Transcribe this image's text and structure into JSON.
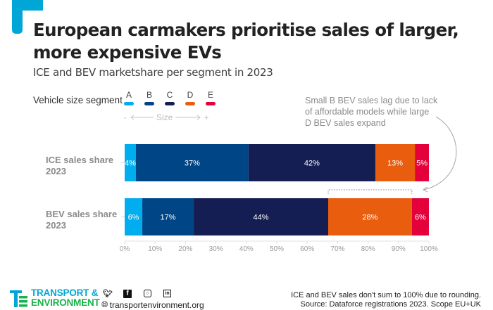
{
  "header": {
    "title_line1": "European carmakers prioritise sales of larger,",
    "title_line2": "more expensive EVs",
    "subtitle": "ICE and BEV marketshare per segment in 2023"
  },
  "legend": {
    "label": "Vehicle size segment",
    "size_minus": "-",
    "size_label": "Size",
    "size_plus": "+"
  },
  "annotation": {
    "lines": [
      "Small B BEV sales lag due to lack",
      "of affordable models while large",
      "D BEV sales expand"
    ]
  },
  "chart_data": {
    "type": "bar",
    "orientation": "horizontal",
    "stacked": true,
    "title": "European carmakers prioritise sales of larger, more expensive EVs",
    "subtitle": "ICE and BEV marketshare per segment in 2023",
    "categories": [
      "ICE sales share 2023",
      "BEV sales share 2023"
    ],
    "category_lines": [
      [
        "ICE sales share",
        "2023"
      ],
      [
        "BEV sales share",
        "2023"
      ]
    ],
    "series": [
      {
        "name": "A",
        "color": "#00aeef",
        "values": [
          4,
          6
        ],
        "labels": [
          "4%",
          "6%"
        ]
      },
      {
        "name": "B",
        "color": "#004586",
        "values": [
          37,
          17
        ],
        "labels": [
          "37%",
          "17%"
        ]
      },
      {
        "name": "C",
        "color": "#151e52",
        "values": [
          42,
          44
        ],
        "labels": [
          "42%",
          "44%"
        ]
      },
      {
        "name": "D",
        "color": "#e85d0e",
        "values": [
          13,
          28
        ],
        "labels": [
          "13%",
          "28%"
        ]
      },
      {
        "name": "E",
        "color": "#e4003b",
        "values": [
          5,
          6
        ],
        "labels": [
          "5%",
          "6%"
        ]
      }
    ],
    "segment_bounds_pct": [
      [
        0,
        3.7,
        40.7,
        82.4,
        95.4,
        100
      ],
      [
        0,
        5.8,
        22.7,
        66.9,
        94.4,
        100
      ]
    ],
    "xlabel": "",
    "ylabel": "",
    "xlim": [
      0,
      100
    ],
    "xticks": [
      0,
      10,
      20,
      30,
      40,
      50,
      60,
      70,
      80,
      90,
      100
    ],
    "xtick_labels": [
      "0%",
      "10%",
      "20%",
      "30%",
      "40%",
      "50%",
      "60%",
      "70%",
      "80%",
      "90%",
      "100%"
    ],
    "grid": false,
    "legend_position": "top-left",
    "annotation_text": "Small B BEV sales lag due to lack of affordable models while large D BEV sales expand",
    "bracket_range_pct": [
      66.9,
      94.4
    ]
  },
  "footer": {
    "logo_line1": "TRANSPORT &",
    "logo_line2": "ENVIRONMENT",
    "social_icons": [
      "twitter-icon",
      "facebook-icon",
      "instagram-icon",
      "linkedin-icon"
    ],
    "website": "transportenvironment.org",
    "note_line1": "ICE and BEV sales don't sum to 100% due to rounding.",
    "note_line2": "Source: Dataforce registrations 2023. Scope EU+UK"
  },
  "colors": {
    "brand_blue": "#00a6d6",
    "brand_green": "#1bb24b",
    "title": "#222222",
    "muted": "#8a8a8a"
  }
}
